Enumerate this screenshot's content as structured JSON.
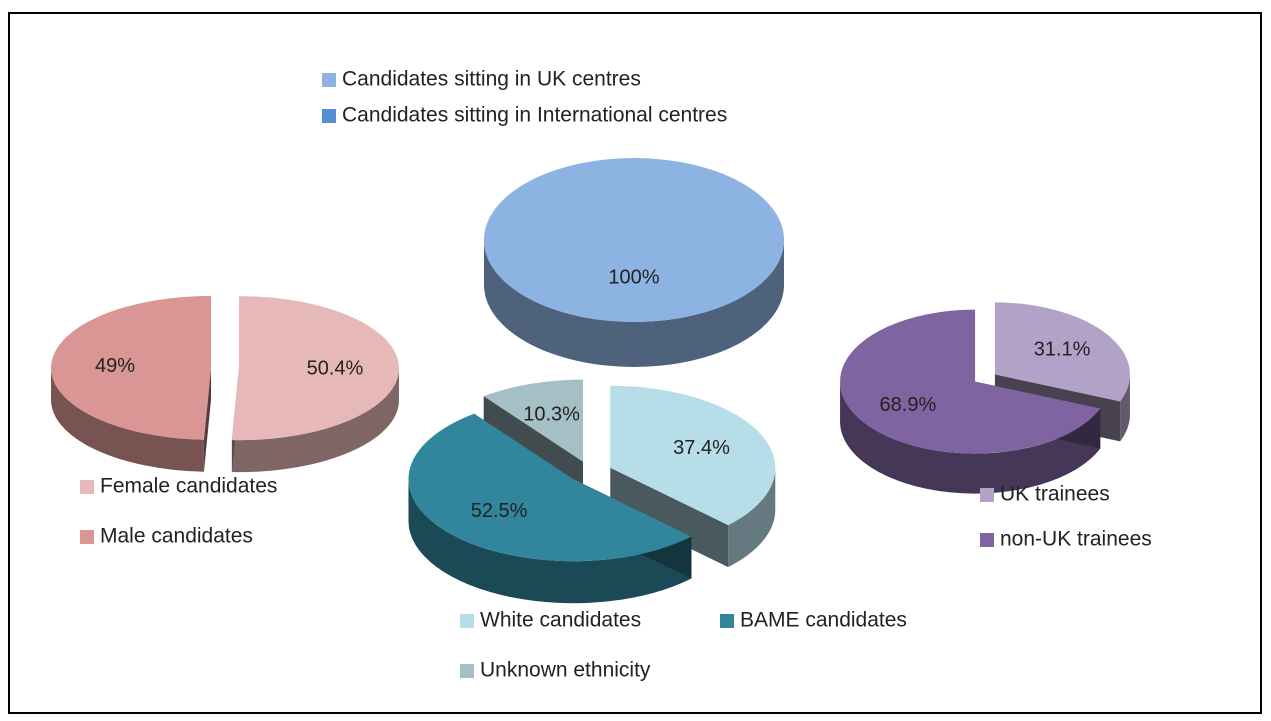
{
  "chart_data": [
    {
      "type": "pie",
      "categories": [
        "Candidates sitting in UK centres",
        "Candidates sitting in International centres"
      ],
      "values": [
        100,
        0
      ],
      "value_labels": [
        "100%",
        null
      ],
      "colors": [
        "#8db3e2",
        "#558ed5"
      ]
    },
    {
      "type": "pie",
      "categories": [
        "Female candidates",
        "Male candidates"
      ],
      "values": [
        50.4,
        49
      ],
      "value_labels": [
        "50.4%",
        "49%"
      ],
      "colors": [
        "#e6b9b8",
        "#d99694"
      ]
    },
    {
      "type": "pie",
      "categories": [
        "White candidates",
        "BAME candidates",
        "Unknown ethnicity"
      ],
      "values": [
        37.4,
        52.5,
        10.3
      ],
      "value_labels": [
        "37.4%",
        "52.5%",
        "10.3%"
      ],
      "colors": [
        "#b7dee8",
        "#31859c",
        "#a5bfc6"
      ]
    },
    {
      "type": "pie",
      "categories": [
        "UK trainees",
        "non-UK trainees"
      ],
      "values": [
        31.1,
        68.9
      ],
      "value_labels": [
        "31.1%",
        "68.9%"
      ],
      "colors": [
        "#b3a2c7",
        "#8064a2"
      ]
    }
  ]
}
